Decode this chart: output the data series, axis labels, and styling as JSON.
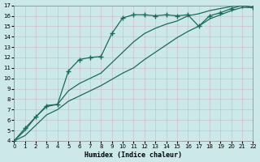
{
  "xlabel": "Humidex (Indice chaleur)",
  "bg_color": "#cce8e8",
  "grid_color": "#b8d8d8",
  "line_color": "#1a6b5a",
  "xlim": [
    0,
    22
  ],
  "ylim": [
    4,
    17
  ],
  "xticks": [
    0,
    1,
    2,
    3,
    4,
    5,
    6,
    7,
    8,
    9,
    10,
    11,
    12,
    13,
    14,
    15,
    16,
    17,
    18,
    19,
    20,
    21,
    22
  ],
  "yticks": [
    4,
    5,
    6,
    7,
    8,
    9,
    10,
    11,
    12,
    13,
    14,
    15,
    16,
    17
  ],
  "marker_x": [
    0,
    1,
    2,
    3,
    4,
    5,
    6,
    7,
    8,
    9,
    10,
    11,
    12,
    13,
    14,
    15,
    16,
    17,
    18,
    19,
    20,
    21,
    22
  ],
  "marker_y": [
    4.0,
    5.2,
    6.3,
    7.3,
    7.5,
    10.7,
    11.8,
    12.0,
    12.1,
    14.3,
    15.8,
    16.1,
    16.1,
    16.0,
    16.1,
    16.0,
    16.1,
    15.0,
    16.0,
    16.3,
    16.7,
    17.0,
    16.8
  ],
  "smooth_upper_x": [
    0,
    1,
    2,
    3,
    4,
    5,
    6,
    7,
    8,
    9,
    10,
    11,
    12,
    13,
    14,
    15,
    16,
    17,
    18,
    19,
    20,
    21,
    22
  ],
  "smooth_upper_y": [
    4.0,
    5.0,
    6.3,
    7.4,
    7.5,
    8.8,
    9.5,
    10.0,
    10.5,
    11.5,
    12.5,
    13.5,
    14.3,
    14.8,
    15.2,
    15.5,
    16.0,
    16.2,
    16.5,
    16.7,
    16.9,
    17.0,
    16.8
  ],
  "smooth_lower_x": [
    0,
    1,
    2,
    3,
    4,
    5,
    6,
    7,
    8,
    9,
    10,
    11,
    12,
    13,
    14,
    15,
    16,
    17,
    18,
    19,
    20,
    21,
    22
  ],
  "smooth_lower_y": [
    4.0,
    4.5,
    5.5,
    6.5,
    7.0,
    7.8,
    8.3,
    8.8,
    9.3,
    9.9,
    10.5,
    11.0,
    11.8,
    12.5,
    13.2,
    13.9,
    14.5,
    15.0,
    15.7,
    16.1,
    16.5,
    16.8,
    16.8
  ]
}
